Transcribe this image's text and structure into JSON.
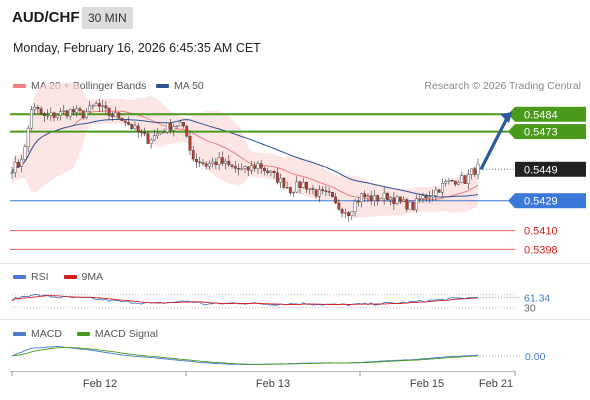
{
  "header": {
    "symbol": "AUD/CHF",
    "timeframe": "30 MIN",
    "datetime": "Monday, February 16, 2026 6:45:35 AM CET"
  },
  "legend": {
    "items": [
      {
        "label": "MA 20 + Bollinger Bands",
        "color": "#f08080"
      },
      {
        "label": "MA 50",
        "color": "#2f5597"
      }
    ],
    "credit": "Research © 2026 Trading Central"
  },
  "colors": {
    "up_candle": "#ffffff",
    "down_candle": "#c0392b",
    "resistance": "#4a9a1c",
    "pivot": "#3b78d8",
    "support": "#e06060",
    "arrow": "#2c5aa0",
    "current_label": "#222222",
    "rsi": "#4a7bd0",
    "rsi_ma": "#d22020",
    "macd": "#4a7bd0",
    "macd_signal": "#4a9a1c"
  },
  "chart_data": [
    {
      "type": "candlestick",
      "title": "AUD/CHF",
      "timeframe": "30 MIN",
      "x_tick_labels": [
        "Feb 12",
        "Feb 13",
        "Feb 15",
        "Feb 21"
      ],
      "ylim": [
        0.539,
        0.5495
      ],
      "levels": [
        {
          "value": 0.5484,
          "label": "0.5484",
          "kind": "resistance"
        },
        {
          "value": 0.5473,
          "label": "0.5473",
          "kind": "resistance"
        },
        {
          "value": 0.5449,
          "label": "0.5449",
          "kind": "current"
        },
        {
          "value": 0.5429,
          "label": "0.5429",
          "kind": "pivot"
        },
        {
          "value": 0.541,
          "label": "0.5410",
          "kind": "support"
        },
        {
          "value": 0.5398,
          "label": "0.5398",
          "kind": "support"
        }
      ],
      "close_anchors": [
        [
          0,
          0.545
        ],
        [
          2,
          0.5452
        ],
        [
          4,
          0.5462
        ],
        [
          6,
          0.5488
        ],
        [
          8,
          0.5486
        ],
        [
          10,
          0.5482
        ],
        [
          14,
          0.5484
        ],
        [
          18,
          0.5486
        ],
        [
          22,
          0.5484
        ],
        [
          26,
          0.549
        ],
        [
          30,
          0.5484
        ],
        [
          34,
          0.5482
        ],
        [
          38,
          0.5474
        ],
        [
          42,
          0.5468
        ],
        [
          44,
          0.547
        ],
        [
          48,
          0.5476
        ],
        [
          52,
          0.5478
        ],
        [
          54,
          0.547
        ],
        [
          56,
          0.5456
        ],
        [
          60,
          0.5452
        ],
        [
          64,
          0.5454
        ],
        [
          68,
          0.545
        ],
        [
          72,
          0.5448
        ],
        [
          76,
          0.5452
        ],
        [
          80,
          0.5446
        ],
        [
          84,
          0.544
        ],
        [
          86,
          0.5436
        ],
        [
          90,
          0.544
        ],
        [
          94,
          0.5434
        ],
        [
          98,
          0.5432
        ],
        [
          100,
          0.5426
        ],
        [
          104,
          0.5422
        ],
        [
          106,
          0.5428
        ],
        [
          108,
          0.5432
        ],
        [
          112,
          0.543
        ],
        [
          116,
          0.5432
        ],
        [
          120,
          0.5428
        ],
        [
          124,
          0.5425
        ],
        [
          126,
          0.543
        ],
        [
          130,
          0.5434
        ],
        [
          134,
          0.544
        ],
        [
          138,
          0.5443
        ],
        [
          140,
          0.5442
        ],
        [
          142,
          0.5447
        ],
        [
          144,
          0.545
        ]
      ],
      "projection": {
        "from": 0.5449,
        "to": 0.5479
      }
    },
    {
      "type": "line",
      "title": "RSI",
      "series": [
        {
          "name": "RSI"
        },
        {
          "name": "9MA"
        }
      ],
      "ylim": [
        0,
        100
      ],
      "levels": [
        70,
        30
      ],
      "value_labels": [
        "61.34",
        "30"
      ],
      "rsi_anchors": [
        [
          0,
          55
        ],
        [
          6,
          70
        ],
        [
          14,
          62
        ],
        [
          24,
          58
        ],
        [
          34,
          48
        ],
        [
          44,
          42
        ],
        [
          54,
          50
        ],
        [
          60,
          40
        ],
        [
          70,
          44
        ],
        [
          80,
          40
        ],
        [
          90,
          42
        ],
        [
          100,
          38
        ],
        [
          110,
          40
        ],
        [
          120,
          44
        ],
        [
          130,
          52
        ],
        [
          138,
          58
        ],
        [
          144,
          61.34
        ]
      ]
    },
    {
      "type": "line",
      "title": "MACD",
      "series": [
        {
          "name": "MACD"
        },
        {
          "name": "MACD Signal"
        }
      ],
      "value_labels": [
        "0.00"
      ],
      "macd_anchors": [
        [
          0,
          0.0003
        ],
        [
          6,
          0.0012
        ],
        [
          14,
          0.0014
        ],
        [
          24,
          0.001
        ],
        [
          34,
          0.0004
        ],
        [
          44,
          0.0001
        ],
        [
          54,
          -0.0003
        ],
        [
          64,
          -0.0006
        ],
        [
          74,
          -0.0007
        ],
        [
          84,
          -0.0006
        ],
        [
          94,
          -0.0005
        ],
        [
          104,
          -0.0005
        ],
        [
          114,
          -0.0003
        ],
        [
          124,
          -0.0001
        ],
        [
          134,
          0.0002
        ],
        [
          144,
          0.0004
        ]
      ]
    }
  ]
}
